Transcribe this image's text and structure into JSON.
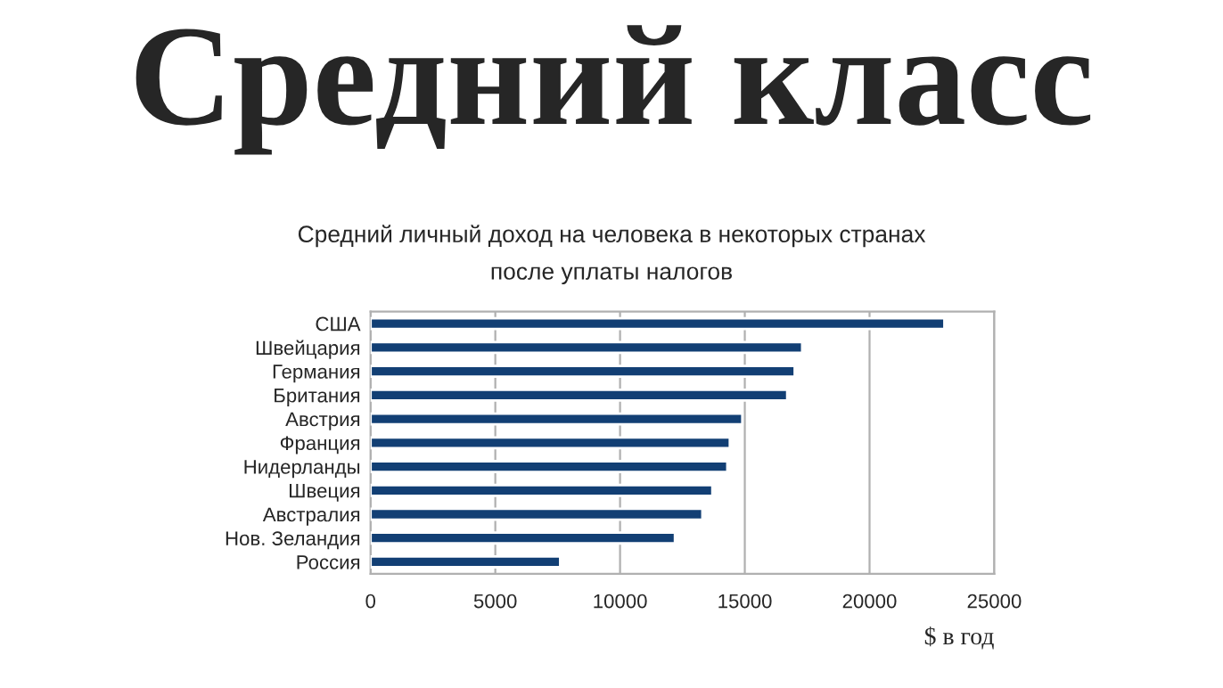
{
  "chart_data": {
    "type": "bar",
    "orientation": "horizontal",
    "title": "Средний класс",
    "subtitle": "Средний личный доход на человека в некоторых странах\nпосле уплаты налогов",
    "xlabel": "$ в год",
    "categories": [
      "США",
      "Швейцария",
      "Германия",
      "Британия",
      "Австрия",
      "Франция",
      "Нидерланды",
      "Швеция",
      "Австралия",
      "Нов. Зеландия",
      "Россия"
    ],
    "values": [
      23000,
      17300,
      17000,
      16700,
      14900,
      14400,
      14300,
      13700,
      13300,
      12200,
      7600
    ],
    "color": "#123f74",
    "xlim": [
      0,
      25000
    ],
    "xticks": [
      0,
      5000,
      10000,
      15000,
      20000,
      25000
    ],
    "grid": "x"
  }
}
